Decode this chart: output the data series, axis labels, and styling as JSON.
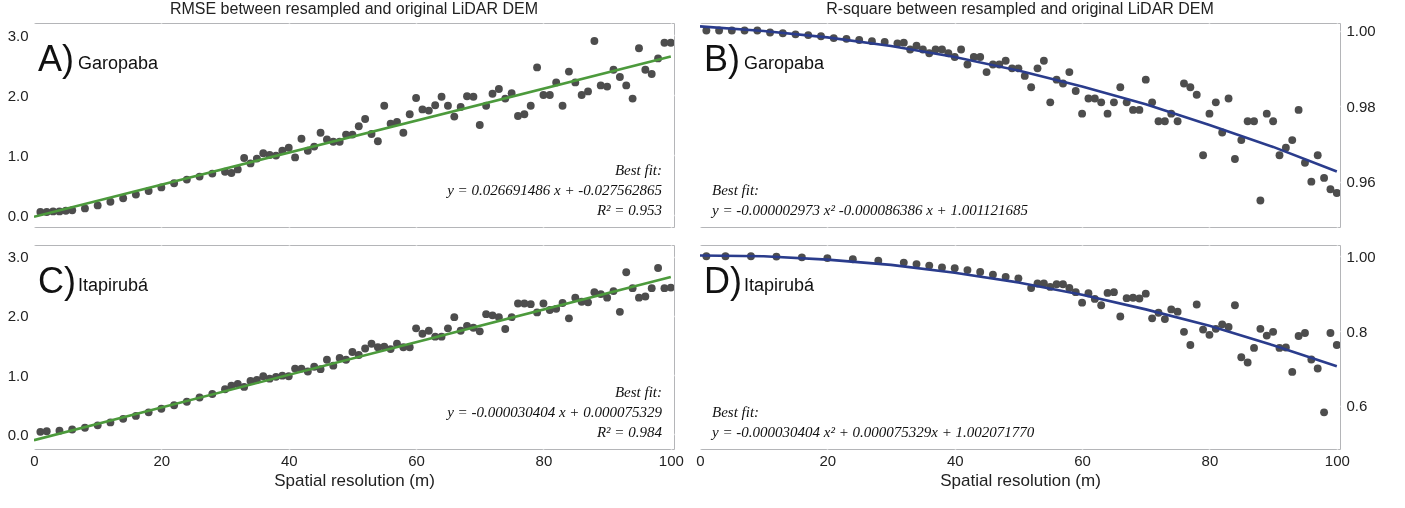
{
  "chart_data": [
    {
      "type": "scatter",
      "title": "RMSE between resampled and original LiDAR DEM",
      "xlim": [
        0,
        100.5
      ],
      "ylim": [
        -0.2,
        3.2
      ],
      "yticks": [
        {
          "value": 0,
          "label": "0.0"
        },
        {
          "value": 1,
          "label": "1.0"
        },
        {
          "value": 2,
          "label": "2.0"
        },
        {
          "value": 3,
          "label": "3.0"
        }
      ],
      "xticks": [
        0,
        20,
        40,
        60,
        80,
        100
      ],
      "tick_labels": "y",
      "grid": true,
      "annotations": [
        "A)",
        "Garopaba",
        "Best fit:",
        "y = 0.026691486 x + -0.027562865",
        "R² = 0.953"
      ],
      "series": [
        {
          "marker": "circle",
          "color": "#4d4d4d",
          "x": [
            1,
            2,
            3,
            4,
            5,
            6,
            8,
            10,
            12,
            14,
            16,
            18,
            20,
            22,
            24,
            26,
            28,
            30,
            31,
            32,
            33,
            34,
            35,
            36,
            37,
            38,
            39,
            40,
            41,
            42,
            43,
            44,
            45,
            46,
            47,
            48,
            49,
            50,
            51,
            52,
            53,
            54,
            55,
            56,
            57,
            58,
            59,
            60,
            61,
            62,
            63,
            64,
            65,
            66,
            67,
            68,
            69,
            70,
            71,
            72,
            73,
            74,
            75,
            76,
            77,
            78,
            79,
            80,
            81,
            82,
            83,
            84,
            85,
            86,
            87,
            88,
            89,
            90,
            91,
            92,
            93,
            94,
            95,
            96,
            97,
            98,
            99,
            100
          ],
          "values": [
            0.05,
            0.05,
            0.06,
            0.06,
            0.07,
            0.08,
            0.11,
            0.16,
            0.22,
            0.28,
            0.34,
            0.4,
            0.46,
            0.53,
            0.59,
            0.64,
            0.69,
            0.72,
            0.7,
            0.76,
            0.95,
            0.86,
            0.94,
            1.03,
            1.0,
            0.99,
            1.07,
            1.12,
            0.96,
            1.27,
            1.07,
            1.14,
            1.37,
            1.26,
            1.22,
            1.22,
            1.34,
            1.34,
            1.48,
            1.6,
            1.35,
            1.23,
            1.82,
            1.52,
            1.55,
            1.37,
            1.68,
            1.95,
            1.76,
            1.74,
            1.83,
            1.97,
            1.82,
            1.64,
            1.8,
            1.98,
            1.97,
            1.5,
            1.82,
            2.02,
            2.1,
            1.94,
            2.03,
            1.65,
            1.68,
            1.82,
            2.46,
            2.0,
            2.0,
            2.21,
            1.82,
            2.39,
            2.21,
            2.0,
            2.06,
            2.9,
            2.16,
            2.14,
            2.42,
            2.3,
            2.16,
            1.94,
            2.78,
            2.42,
            2.35,
            2.61,
            2.87,
            2.87
          ]
        },
        {
          "type": "line",
          "color": "#4c9a3c",
          "line_style": "solid",
          "x": [
            0,
            100
          ],
          "values": [
            -0.03,
            2.64
          ]
        }
      ]
    },
    {
      "type": "scatter",
      "title": "R-square between resampled and original LiDAR DEM",
      "xlim": [
        0,
        100.5
      ],
      "ylim": [
        0.948,
        1.002
      ],
      "yticks": [
        {
          "value": 0.96,
          "label": "0.96"
        },
        {
          "value": 0.98,
          "label": "0.98"
        },
        {
          "value": 1,
          "label": "1.00"
        }
      ],
      "xticks": [
        0,
        20,
        40,
        60,
        80,
        100
      ],
      "tick_labels": "y",
      "grid": true,
      "annotations": [
        "B)",
        "Garopaba",
        "Best fit:",
        "y = -0.000002973 x²  -0.000086386 x + 1.001121685"
      ],
      "series": [
        {
          "marker": "circle",
          "color": "#4d4d4d",
          "x": [
            1,
            3,
            5,
            7,
            9,
            11,
            13,
            15,
            17,
            19,
            21,
            23,
            25,
            27,
            29,
            31,
            32,
            33,
            34,
            35,
            36,
            37,
            38,
            39,
            40,
            41,
            42,
            43,
            44,
            45,
            46,
            47,
            48,
            49,
            50,
            51,
            52,
            53,
            54,
            55,
            56,
            57,
            58,
            59,
            60,
            61,
            62,
            63,
            64,
            65,
            66,
            67,
            68,
            69,
            70,
            71,
            72,
            73,
            74,
            75,
            76,
            77,
            78,
            79,
            80,
            81,
            82,
            83,
            84,
            85,
            86,
            87,
            88,
            89,
            90,
            91,
            92,
            93,
            94,
            95,
            96,
            97,
            98,
            99,
            100
          ],
          "values": [
            1.0,
            1.0,
            1.0,
            1.0,
            1.0,
            0.9995,
            0.9993,
            0.999,
            0.9988,
            0.9985,
            0.998,
            0.9978,
            0.9975,
            0.9972,
            0.997,
            0.9966,
            0.9968,
            0.995,
            0.996,
            0.995,
            0.994,
            0.995,
            0.995,
            0.994,
            0.993,
            0.995,
            0.991,
            0.993,
            0.993,
            0.989,
            0.991,
            0.991,
            0.992,
            0.99,
            0.99,
            0.988,
            0.985,
            0.99,
            0.992,
            0.981,
            0.987,
            0.986,
            0.989,
            0.984,
            0.978,
            0.982,
            0.982,
            0.981,
            0.978,
            0.981,
            0.985,
            0.981,
            0.979,
            0.979,
            0.987,
            0.981,
            0.976,
            0.976,
            0.978,
            0.976,
            0.986,
            0.985,
            0.983,
            0.967,
            0.978,
            0.981,
            0.973,
            0.982,
            0.966,
            0.971,
            0.976,
            0.976,
            0.955,
            0.978,
            0.976,
            0.967,
            0.969,
            0.971,
            0.979,
            0.965,
            0.96,
            0.967,
            0.961,
            0.958,
            0.957
          ]
        },
        {
          "type": "line",
          "color": "#2a3c8c",
          "line_style": "solid",
          "x": [
            0,
            10,
            20,
            30,
            40,
            50,
            60,
            70,
            80,
            90,
            100
          ],
          "values": [
            1.0011,
            0.9999,
            0.9982,
            0.9959,
            0.993,
            0.9894,
            0.9852,
            0.9805,
            0.975,
            0.9692,
            0.9627
          ]
        }
      ]
    },
    {
      "type": "scatter",
      "xlabel": "Spatial resolution (m)",
      "xlim": [
        0,
        100.5
      ],
      "ylim": [
        -0.25,
        3.2
      ],
      "yticks": [
        {
          "value": 0,
          "label": "0.0"
        },
        {
          "value": 1,
          "label": "1.0"
        },
        {
          "value": 2,
          "label": "2.0"
        },
        {
          "value": 3,
          "label": "3.0"
        }
      ],
      "xticks": [
        0,
        20,
        40,
        60,
        80,
        100
      ],
      "grid": true,
      "annotations": [
        "C)",
        "Itapirubá",
        "Best fit:",
        "y = -0.000030404 x + 0.000075329",
        "R² =  0.984"
      ],
      "series": [
        {
          "marker": "circle",
          "color": "#4d4d4d",
          "x": [
            1,
            2,
            4,
            6,
            8,
            10,
            12,
            14,
            16,
            18,
            20,
            22,
            24,
            26,
            28,
            30,
            31,
            32,
            33,
            34,
            35,
            36,
            37,
            38,
            39,
            40,
            41,
            42,
            43,
            44,
            45,
            46,
            47,
            48,
            49,
            50,
            51,
            52,
            53,
            54,
            55,
            56,
            57,
            58,
            59,
            60,
            61,
            62,
            63,
            64,
            65,
            66,
            67,
            68,
            69,
            70,
            71,
            72,
            73,
            74,
            75,
            76,
            77,
            78,
            79,
            80,
            81,
            82,
            83,
            84,
            85,
            86,
            87,
            88,
            89,
            90,
            91,
            92,
            93,
            94,
            95,
            96,
            97,
            98,
            99,
            100
          ],
          "values": [
            0.04,
            0.05,
            0.06,
            0.08,
            0.11,
            0.15,
            0.2,
            0.26,
            0.31,
            0.37,
            0.43,
            0.49,
            0.55,
            0.62,
            0.68,
            0.76,
            0.82,
            0.85,
            0.8,
            0.9,
            0.92,
            0.98,
            0.94,
            0.97,
            0.99,
            0.98,
            1.11,
            1.11,
            1.06,
            1.14,
            1.1,
            1.26,
            1.16,
            1.29,
            1.26,
            1.39,
            1.34,
            1.45,
            1.53,
            1.47,
            1.48,
            1.44,
            1.53,
            1.47,
            1.47,
            1.79,
            1.7,
            1.75,
            1.65,
            1.65,
            1.79,
            1.98,
            1.75,
            1.83,
            1.8,
            1.74,
            2.03,
            2.01,
            1.98,
            1.78,
            1.98,
            2.21,
            2.21,
            2.2,
            2.06,
            2.21,
            2.1,
            2.12,
            2.22,
            1.96,
            2.31,
            2.24,
            2.23,
            2.4,
            2.37,
            2.31,
            2.42,
            2.07,
            2.74,
            2.47,
            2.31,
            2.33,
            2.47,
            2.81,
            2.47,
            2.48
          ]
        },
        {
          "type": "line",
          "color": "#4c9a3c",
          "line_style": "solid",
          "x": [
            0,
            100
          ],
          "values": [
            -0.1,
            2.66
          ]
        }
      ]
    },
    {
      "type": "scatter",
      "xlabel": "Spatial resolution (m)",
      "xlim": [
        0,
        100.5
      ],
      "ylim": [
        0.485,
        1.03
      ],
      "yticks": [
        {
          "value": 0.6,
          "label": "0.6"
        },
        {
          "value": 0.8,
          "label": "0.8"
        },
        {
          "value": 1,
          "label": "1.00"
        }
      ],
      "xticks": [
        0,
        20,
        40,
        60,
        80,
        100
      ],
      "grid": true,
      "annotations": [
        "D)",
        "Itapirubá",
        "Best fit:",
        "y = -0.000030404 x² + 0.000075329x + 1.002071770"
      ],
      "series": [
        {
          "marker": "circle",
          "color": "#4d4d4d",
          "x": [
            1,
            4,
            8,
            12,
            16,
            20,
            24,
            28,
            32,
            34,
            36,
            38,
            40,
            42,
            44,
            46,
            48,
            50,
            52,
            53,
            54,
            55,
            56,
            57,
            58,
            59,
            60,
            61,
            62,
            63,
            64,
            65,
            66,
            67,
            68,
            69,
            70,
            71,
            72,
            73,
            74,
            75,
            76,
            77,
            78,
            79,
            80,
            81,
            82,
            83,
            84,
            85,
            86,
            87,
            88,
            89,
            90,
            91,
            92,
            93,
            94,
            95,
            96,
            97,
            98,
            99,
            100
          ],
          "values": [
            1.0,
            1.0,
            1.0,
            0.999,
            0.997,
            0.995,
            0.992,
            0.988,
            0.983,
            0.979,
            0.975,
            0.97,
            0.968,
            0.963,
            0.958,
            0.951,
            0.945,
            0.941,
            0.915,
            0.927,
            0.927,
            0.918,
            0.925,
            0.925,
            0.915,
            0.904,
            0.876,
            0.901,
            0.886,
            0.869,
            0.902,
            0.904,
            0.839,
            0.888,
            0.889,
            0.887,
            0.9,
            0.834,
            0.849,
            0.832,
            0.858,
            0.852,
            0.798,
            0.763,
            0.871,
            0.804,
            0.79,
            0.806,
            0.818,
            0.811,
            0.869,
            0.73,
            0.716,
            0.755,
            0.806,
            0.788,
            0.798,
            0.755,
            0.756,
            0.691,
            0.787,
            0.795,
            0.724,
            0.7,
            0.583,
            0.795,
            0.763
          ]
        },
        {
          "type": "line",
          "color": "#2a3c8c",
          "line_style": "solid",
          "x": [
            0,
            10,
            20,
            30,
            40,
            50,
            60,
            70,
            80,
            90,
            100
          ],
          "values": [
            1.002,
            1.0,
            0.991,
            0.977,
            0.956,
            0.93,
            0.897,
            0.858,
            0.814,
            0.762,
            0.706
          ]
        }
      ]
    }
  ]
}
